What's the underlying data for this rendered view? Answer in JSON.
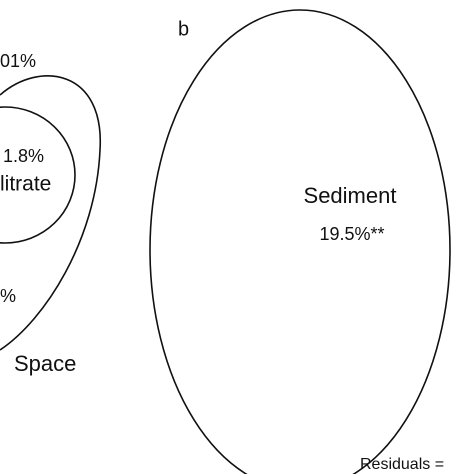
{
  "panel_label": "b",
  "left_diagram": {
    "top_value": "01%",
    "filtrate_value": "1.8%",
    "filtrate_name": "litrate",
    "lower_value": "%",
    "space_name": "Space"
  },
  "right_diagram": {
    "sediment_name": "Sediment",
    "sediment_value": "19.5%**",
    "residuals": "Residuals ="
  }
}
